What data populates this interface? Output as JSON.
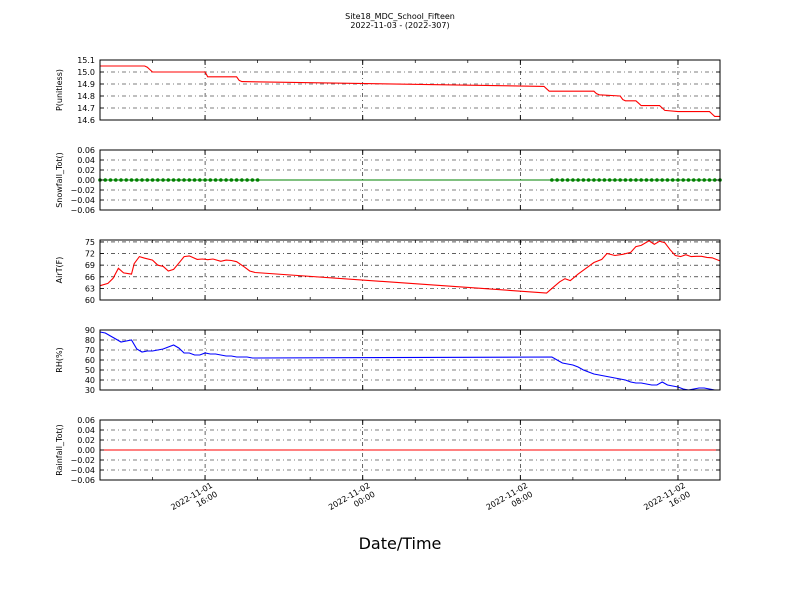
{
  "figure": {
    "title": "Site18_MDC_School_Fifteen",
    "subtitle": "2022-11-03 - (2022-307)",
    "xlabel": "Date/Time"
  },
  "colors": {
    "red": "#ff0000",
    "green": "#008000",
    "blue": "#0000ff",
    "axis": "#000000"
  },
  "chart_data": [
    {
      "type": "line",
      "ylabel": "P(unitless)",
      "ylim": [
        14.6,
        15.1
      ],
      "yticks": [
        14.6,
        14.7,
        14.8,
        14.9,
        15.0,
        15.1
      ],
      "yticklabels": [
        "14.6",
        "14.7",
        "14.8",
        "14.9",
        "15.0",
        "15.1"
      ],
      "xlim": [
        10.0,
        33.6
      ],
      "grid": true,
      "series": [
        {
          "color": "#ff0000",
          "marker": "none",
          "x": [
            10.0,
            11.7,
            11.8,
            11.9,
            12.0,
            13.2,
            13.3,
            13.4,
            14.0,
            14.1,
            15.2,
            15.3,
            15.4,
            26.9,
            27.0,
            27.1,
            28.8,
            28.9,
            29.0,
            29.8,
            29.9,
            30.0,
            30.4,
            30.5,
            30.6,
            31.3,
            31.4,
            31.5,
            32.0,
            32.5,
            33.0,
            33.2,
            33.3,
            33.4,
            33.6
          ],
          "y": [
            15.05,
            15.05,
            15.04,
            15.02,
            15.0,
            15.0,
            15.0,
            15.0,
            15.0,
            14.96,
            14.96,
            14.93,
            14.92,
            14.88,
            14.86,
            14.84,
            14.84,
            14.82,
            14.81,
            14.8,
            14.77,
            14.76,
            14.76,
            14.74,
            14.72,
            14.72,
            14.7,
            14.68,
            14.67,
            14.67,
            14.67,
            14.67,
            14.65,
            14.63,
            14.63
          ]
        }
      ]
    },
    {
      "type": "line",
      "ylabel": "Snowfall_Tot()",
      "ylim": [
        -0.06,
        0.06
      ],
      "yticks": [
        -0.06,
        -0.04,
        -0.02,
        0.0,
        0.02,
        0.04,
        0.06
      ],
      "yticklabels": [
        "−0.06",
        "−0.04",
        "−0.02",
        "0.00",
        "0.02",
        "0.04",
        "0.06"
      ],
      "xlim": [
        10.0,
        33.6
      ],
      "grid": true,
      "series": [
        {
          "color": "#008000",
          "marker": "dot",
          "x": [
            10.0,
            10.2,
            10.4,
            10.6,
            10.8,
            11.0,
            11.2,
            11.4,
            11.6,
            11.8,
            12.0,
            12.2,
            12.4,
            12.6,
            12.8,
            13.0,
            13.2,
            13.4,
            13.6,
            13.8,
            14.0,
            14.2,
            14.4,
            14.6,
            14.8,
            15.0,
            15.2,
            15.4,
            15.6,
            15.8,
            16.0,
            27.2,
            27.4,
            27.6,
            27.8,
            28.0,
            28.2,
            28.4,
            28.6,
            28.8,
            29.0,
            29.2,
            29.4,
            29.6,
            29.8,
            30.0,
            30.2,
            30.4,
            30.6,
            30.8,
            31.0,
            31.2,
            31.4,
            31.6,
            31.8,
            32.0,
            32.2,
            32.4,
            32.6,
            32.8,
            33.0,
            33.2,
            33.4,
            33.6
          ],
          "y": [
            0,
            0,
            0,
            0,
            0,
            0,
            0,
            0,
            0,
            0,
            0,
            0,
            0,
            0,
            0,
            0,
            0,
            0,
            0,
            0,
            0,
            0,
            0,
            0,
            0,
            0,
            0,
            0,
            0,
            0,
            0,
            0,
            0,
            0,
            0,
            0,
            0,
            0,
            0,
            0,
            0,
            0,
            0,
            0,
            0,
            0,
            0,
            0,
            0,
            0,
            0,
            0,
            0,
            0,
            0,
            0,
            0,
            0,
            0,
            0,
            0,
            0,
            0,
            0
          ]
        }
      ]
    },
    {
      "type": "line",
      "ylabel": "AirT(F)",
      "ylim": [
        60,
        75.5
      ],
      "yticks": [
        60,
        63,
        66,
        69,
        72,
        75
      ],
      "yticklabels": [
        "60",
        "63",
        "66",
        "69",
        "72",
        "75"
      ],
      "xlim": [
        10.0,
        33.6
      ],
      "grid": true,
      "series": [
        {
          "color": "#ff0000",
          "marker": "none",
          "x": [
            10.0,
            10.3,
            10.5,
            10.7,
            10.9,
            11.2,
            11.3,
            11.5,
            11.7,
            12.0,
            12.2,
            12.4,
            12.6,
            12.8,
            13.0,
            13.2,
            13.4,
            13.7,
            13.9,
            14.1,
            14.3,
            14.6,
            14.8,
            15.0,
            15.2,
            15.5,
            15.7,
            15.9,
            27.0,
            27.2,
            27.5,
            27.7,
            27.9,
            28.2,
            28.5,
            28.8,
            29.1,
            29.3,
            29.6,
            29.9,
            30.2,
            30.4,
            30.6,
            30.9,
            31.1,
            31.3,
            31.5,
            31.7,
            31.9,
            32.1,
            32.3,
            32.5,
            32.7,
            32.9,
            33.1,
            33.3,
            33.6
          ],
          "y": [
            63.7,
            64.3,
            65.6,
            68.2,
            67.0,
            66.7,
            69.4,
            71.2,
            70.8,
            70.3,
            69.0,
            68.7,
            67.5,
            67.9,
            69.5,
            71.2,
            71.4,
            70.5,
            70.6,
            70.4,
            70.6,
            70.0,
            70.3,
            70.2,
            69.9,
            68.5,
            67.5,
            67.1,
            61.8,
            63.0,
            64.7,
            65.5,
            65.0,
            66.7,
            68.2,
            69.7,
            70.5,
            72.0,
            71.5,
            71.8,
            72.3,
            73.8,
            74.1,
            75.3,
            74.4,
            75.2,
            74.8,
            73.0,
            71.5,
            71.2,
            71.7,
            71.2,
            71.3,
            71.3,
            71.0,
            70.9,
            70.1
          ]
        }
      ]
    },
    {
      "type": "line",
      "ylabel": "RH(%)",
      "ylim": [
        30,
        90
      ],
      "yticks": [
        30,
        40,
        50,
        60,
        70,
        80,
        90
      ],
      "yticklabels": [
        "30",
        "40",
        "50",
        "60",
        "70",
        "80",
        "90"
      ],
      "xlim": [
        10.0,
        33.6
      ],
      "grid": true,
      "series": [
        {
          "color": "#0000ff",
          "marker": "none",
          "x": [
            10.0,
            10.2,
            10.4,
            10.6,
            10.8,
            11.0,
            11.2,
            11.4,
            11.6,
            11.8,
            12.0,
            12.2,
            12.4,
            12.6,
            12.8,
            13.0,
            13.2,
            13.4,
            13.6,
            13.8,
            14.0,
            14.2,
            14.4,
            14.6,
            14.8,
            15.0,
            15.2,
            15.4,
            15.6,
            15.8,
            27.2,
            27.4,
            27.6,
            27.8,
            28.0,
            28.2,
            28.4,
            28.6,
            28.8,
            29.0,
            29.2,
            29.4,
            29.6,
            29.8,
            30.0,
            30.2,
            30.4,
            30.6,
            30.8,
            31.0,
            31.2,
            31.4,
            31.6,
            31.8,
            32.0,
            32.2,
            32.4,
            32.6,
            32.8,
            33.0,
            33.2,
            33.4,
            33.6
          ],
          "y": [
            88,
            87,
            84,
            81,
            78,
            79,
            80,
            71,
            68,
            69,
            69,
            70,
            71,
            73,
            75,
            72,
            67,
            67,
            65,
            65,
            67,
            66,
            66,
            65,
            64,
            64,
            63,
            63,
            63,
            62,
            63,
            60,
            57,
            56,
            55,
            53,
            50,
            48,
            46,
            45,
            44,
            43,
            42,
            41,
            40,
            38,
            37,
            37,
            36,
            35,
            35,
            38,
            35,
            34,
            33,
            31,
            30,
            31,
            32,
            32,
            31,
            30,
            30
          ]
        }
      ]
    },
    {
      "type": "line",
      "ylabel": "Rainfall_Tot()",
      "ylim": [
        -0.06,
        0.06
      ],
      "yticks": [
        -0.06,
        -0.04,
        -0.02,
        0.0,
        0.02,
        0.04,
        0.06
      ],
      "yticklabels": [
        "−0.06",
        "−0.04",
        "−0.02",
        "0.00",
        "0.02",
        "0.04",
        "0.06"
      ],
      "xlim": [
        10.0,
        33.6
      ],
      "grid": true,
      "series": [
        {
          "color": "#ff0000",
          "marker": "none",
          "x": [
            10.0,
            33.6
          ],
          "y": [
            0,
            0
          ]
        }
      ]
    }
  ],
  "x_axis": {
    "ticks": [
      14.0,
      20.0,
      26.0,
      32.0
    ],
    "ticklabels": [
      [
        "2022-11-01",
        "16:00"
      ],
      [
        "2022-11-02",
        "00:00"
      ],
      [
        "2022-11-02",
        "08:00"
      ],
      [
        "2022-11-02",
        "16:00"
      ]
    ]
  }
}
